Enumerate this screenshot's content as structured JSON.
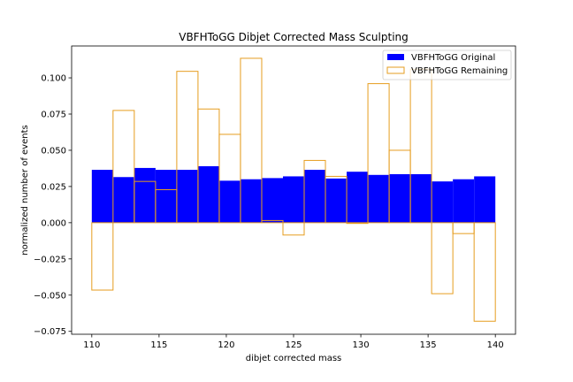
{
  "chart_data": {
    "type": "bar",
    "title": "VBFHToGG Dibjet Corrected Mass Sculpting",
    "xlabel": "dibjet corrected mass",
    "ylabel": "normalized number of events",
    "xlim": [
      108.5,
      141.5
    ],
    "ylim": [
      -0.077,
      0.122
    ],
    "xticks": [
      110,
      115,
      120,
      125,
      130,
      135,
      140
    ],
    "yticks": [
      -0.075,
      -0.05,
      -0.025,
      0.0,
      0.025,
      0.05,
      0.075,
      0.1
    ],
    "ytick_labels": [
      "−0.075",
      "−0.050",
      "−0.025",
      "0.000",
      "0.025",
      "0.050",
      "0.075",
      "0.100"
    ],
    "bin_edges": [
      110,
      111.579,
      113.158,
      114.737,
      116.316,
      117.895,
      119.474,
      121.053,
      122.632,
      124.211,
      125.789,
      127.368,
      128.947,
      130.526,
      132.105,
      133.684,
      135.263,
      136.842,
      138.421,
      140
    ],
    "legend_position": "top-right",
    "series": [
      {
        "name": "VBFHToGG Original",
        "style": "filled",
        "color": "#0000ff",
        "values": [
          0.0365,
          0.0315,
          0.0378,
          0.0365,
          0.0365,
          0.039,
          0.029,
          0.03,
          0.0308,
          0.032,
          0.0365,
          0.0305,
          0.0352,
          0.033,
          0.0335,
          0.0335,
          0.0285,
          0.03,
          0.032
        ]
      },
      {
        "name": "VBFHToGG Remaining",
        "style": "step",
        "color": "#e69d1f",
        "values": [
          -0.0465,
          0.0775,
          0.0285,
          0.0228,
          0.1045,
          0.0785,
          0.061,
          0.1135,
          0.0015,
          -0.0085,
          0.043,
          0.032,
          -0.0005,
          0.096,
          0.05,
          0.106,
          -0.049,
          -0.0075,
          -0.068
        ]
      }
    ]
  }
}
